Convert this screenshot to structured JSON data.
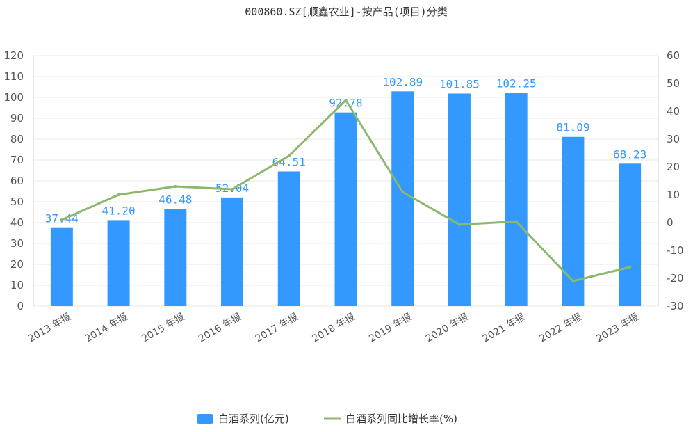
{
  "colors": {
    "bar": "#3399ff",
    "line": "#8bb86a",
    "grid": "#e8e8e8",
    "axis": "#cccccc"
  },
  "chart_data": {
    "type": "bar",
    "title": "000860.SZ[顺鑫农业]-按产品(项目)分类",
    "categories": [
      "2013 年报",
      "2014 年报",
      "2015 年报",
      "2016 年报",
      "2017 年报",
      "2018 年报",
      "2019 年报",
      "2020 年报",
      "2021 年报",
      "2022 年报",
      "2023 年报"
    ],
    "series": [
      {
        "name": "白酒系列(亿元)",
        "type": "bar",
        "axis": "left",
        "values": [
          37.44,
          41.2,
          46.48,
          52.04,
          64.51,
          92.78,
          102.89,
          101.85,
          102.25,
          81.09,
          68.23
        ],
        "labels": [
          "37.44",
          "41.20",
          "46.48",
          "52.04",
          "64.51",
          "92.78",
          "102.89",
          "101.85",
          "102.25",
          "81.09",
          "68.23"
        ]
      },
      {
        "name": "白酒系列同比增长率(%)",
        "type": "line",
        "axis": "right",
        "values": [
          1.0,
          10.0,
          13.0,
          12.0,
          24.0,
          44.0,
          11.0,
          -0.7,
          0.4,
          -21.0,
          -16.0
        ]
      }
    ],
    "ylim_left": [
      0,
      120
    ],
    "yticks_left": [
      0,
      10,
      20,
      30,
      40,
      50,
      60,
      70,
      80,
      90,
      100,
      110,
      120
    ],
    "ylim_right": [
      -30,
      60
    ],
    "yticks_right": [
      -30,
      -20,
      -10,
      0,
      10,
      20,
      30,
      40,
      50,
      60
    ],
    "grid": true,
    "legend_position": "bottom-center"
  }
}
